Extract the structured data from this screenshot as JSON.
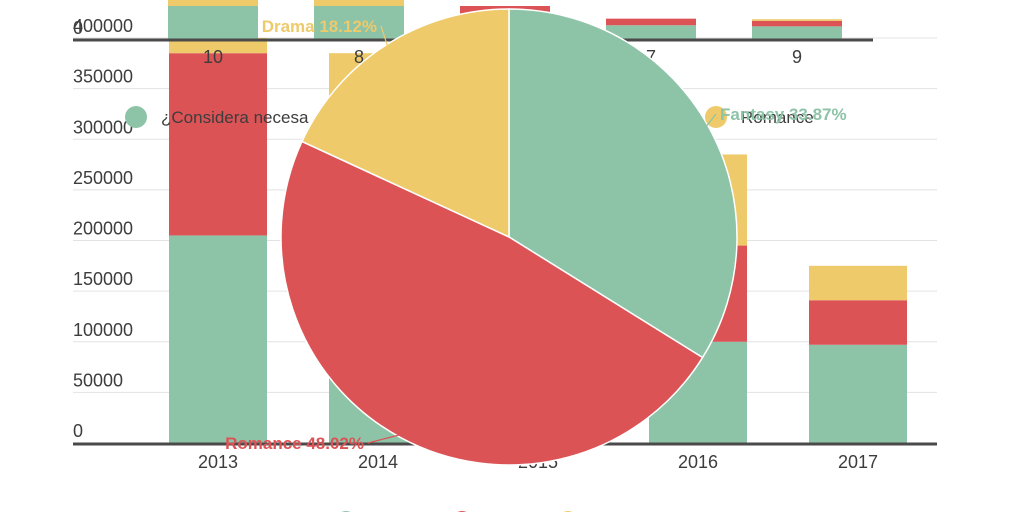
{
  "colors": {
    "green": "#8dc3a7",
    "red": "#dc5356",
    "yellow": "#eeca6a",
    "axis": "#4a4a4a",
    "grid": "#e3e3e3",
    "text": "#3d3d3d"
  },
  "chart_data": [
    {
      "type": "bar",
      "stacked": true,
      "categories": [
        "2013",
        "2014",
        "2015",
        "2016",
        "2017"
      ],
      "series": [
        {
          "values": [
            205000,
            100000,
            100000,
            100000,
            97000
          ],
          "color": "#8dc3a7"
        },
        {
          "values": [
            180000,
            190000,
            190000,
            95000,
            44000
          ],
          "color": "#dc5356"
        },
        {
          "values": [
            15000,
            95000,
            95000,
            90000,
            34000
          ],
          "color": "#eeca6a"
        }
      ],
      "ylim": [
        0,
        400000
      ],
      "y_ticks": [
        "0",
        "50000",
        "100000",
        "150000",
        "200000",
        "250000",
        "300000",
        "350000",
        "400000"
      ],
      "grid": true
    },
    {
      "type": "bar",
      "stacked": true,
      "categories": [
        "10",
        "8",
        "",
        "7",
        "9"
      ],
      "series": [
        {
          "color": "#8dc3a7",
          "values": [
            60,
            60,
            40,
            25,
            23
          ]
        },
        {
          "color": "#dc5356",
          "values": [
            0,
            0,
            20,
            12,
            10
          ]
        },
        {
          "color": "#eeca6a",
          "values": [
            20,
            30,
            0,
            0,
            3
          ]
        }
      ],
      "y_ticks": [
        "0"
      ]
    },
    {
      "type": "pie",
      "slices": [
        {
          "name": "Fantasy",
          "value": 33.87,
          "label": "Fantasy 33.87%",
          "color": "#8dc3a7"
        },
        {
          "name": "Romance",
          "value": 48.02,
          "label": "Romance 48.02%",
          "color": "#dc5356"
        },
        {
          "name": "Drama",
          "value": 18.12,
          "label": "Drama 18.12%",
          "color": "#eeca6a"
        }
      ]
    }
  ],
  "legend_top": {
    "items": [
      {
        "label": "¿Considera necesa",
        "color": "#8dc3a7"
      },
      {
        "label": "Romance",
        "color": "#eeca6a"
      }
    ]
  },
  "legend_bottom_colors": [
    "#8dc3a7",
    "#dc5356",
    "#eeca6a"
  ]
}
